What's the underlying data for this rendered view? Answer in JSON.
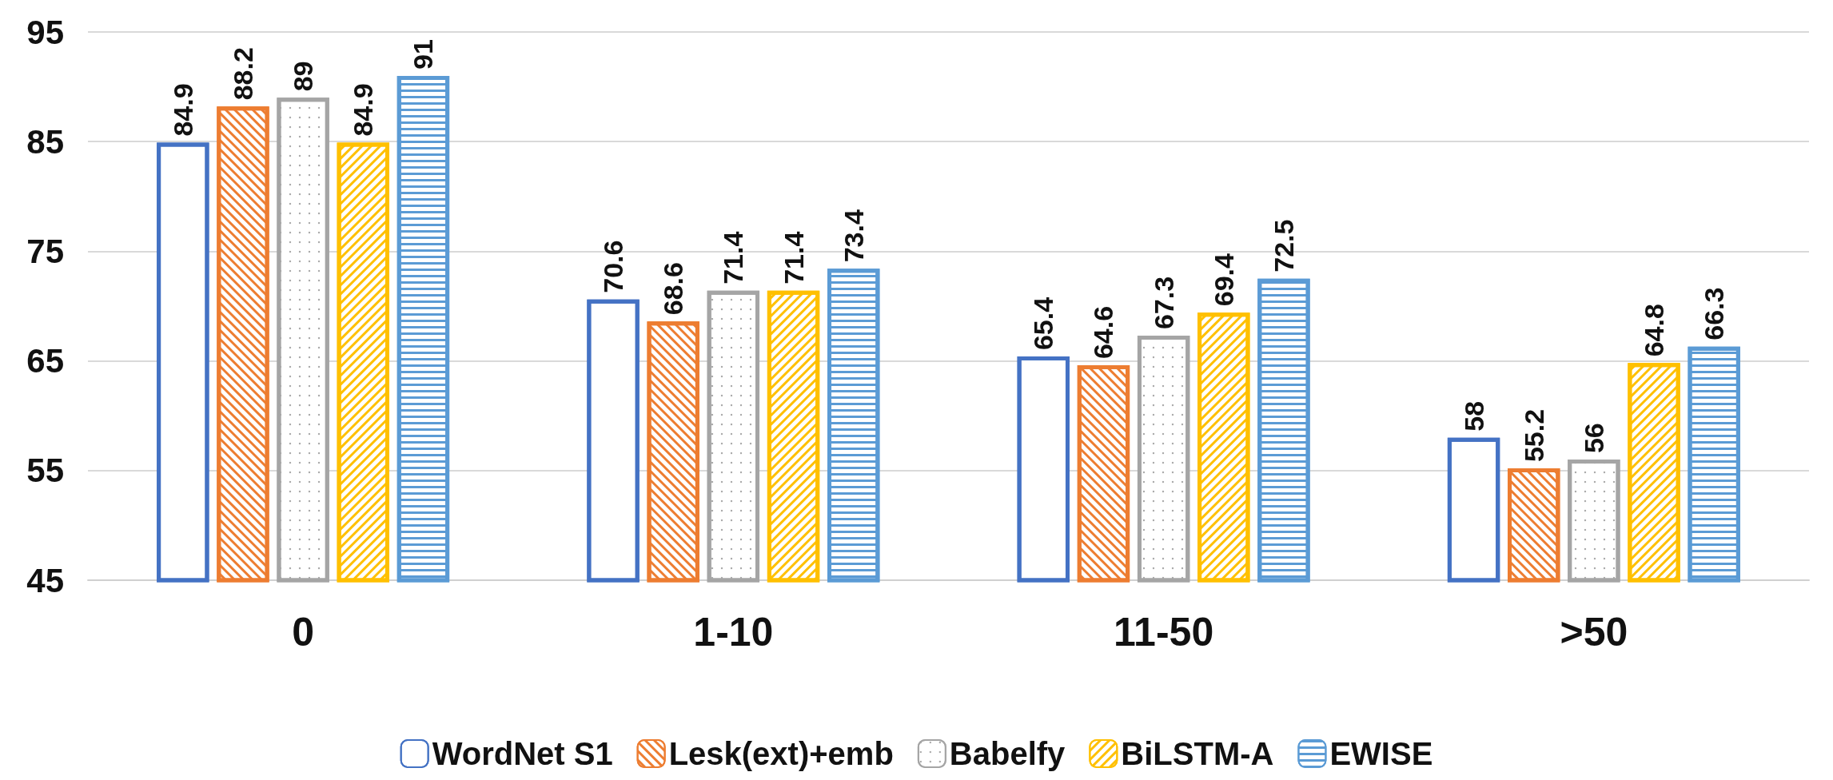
{
  "chart_data": {
    "type": "bar",
    "categories": [
      "0",
      "1-10",
      "11-50",
      ">50"
    ],
    "series": [
      {
        "name": "WordNet S1",
        "color": "#4472c4",
        "values": [
          84.9,
          70.6,
          65.4,
          58
        ]
      },
      {
        "name": "Lesk(ext)+emb",
        "color": "#ed7d31",
        "values": [
          88.2,
          68.6,
          64.6,
          55.2
        ]
      },
      {
        "name": "Babelfy",
        "color": "#a5a5a5",
        "values": [
          89,
          71.4,
          67.3,
          56
        ]
      },
      {
        "name": "BiLSTM-A",
        "color": "#ffc000",
        "values": [
          84.9,
          71.4,
          69.4,
          64.8
        ]
      },
      {
        "name": "EWISE",
        "color": "#5b9bd5",
        "values": [
          91,
          73.4,
          72.5,
          66.3
        ]
      }
    ],
    "ylim": [
      45,
      95
    ],
    "yticks": [
      45,
      55,
      65,
      75,
      85,
      95
    ],
    "grid": "y",
    "legend": "bottom",
    "data_labels": true
  }
}
